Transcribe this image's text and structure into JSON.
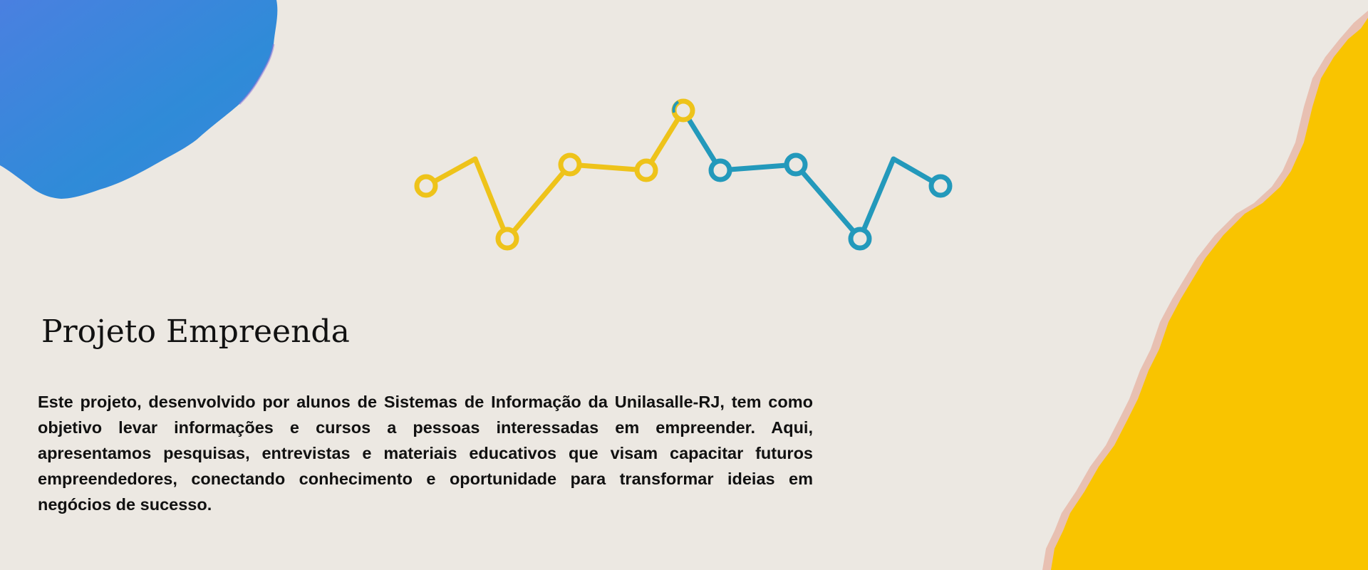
{
  "colors": {
    "background": "#ECE8E2",
    "blue_blob": "#3A86DC",
    "yellow_paper": "#F9C400",
    "line_yellow": "#EEC31A",
    "line_teal": "#2399BB",
    "text": "#111111"
  },
  "decorations": {
    "top_left": "blue-paint-blob",
    "bottom_right": "torn-yellow-paper",
    "center": "zigzag-timeline-line"
  },
  "section": {
    "title": "Projeto Empreenda",
    "description": "Este projeto, desenvolvido por alunos de Sistemas de Informação da Unilasalle-RJ, tem como objetivo levar informações e cursos a pessoas interessadas em empreender. Aqui, apresentamos pesquisas, entrevistas e materiais educativos que visam capacitar futuros empreendedores, conectando conhecimento e oportunidade para transformar ideias em negócios de sucesso."
  }
}
